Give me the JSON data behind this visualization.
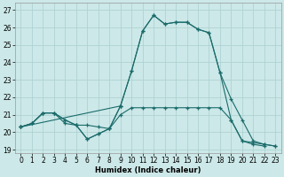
{
  "xlabel": "Humidex (Indice chaleur)",
  "xlim": [
    -0.5,
    23.5
  ],
  "ylim": [
    18.8,
    27.4
  ],
  "yticks": [
    19,
    20,
    21,
    22,
    23,
    24,
    25,
    26,
    27
  ],
  "xticks": [
    0,
    1,
    2,
    3,
    4,
    5,
    6,
    7,
    8,
    9,
    10,
    11,
    12,
    13,
    14,
    15,
    16,
    17,
    18,
    19,
    20,
    21,
    22,
    23
  ],
  "bg_color": "#cce8e8",
  "grid_color": "#aacfcf",
  "line_color": "#1a6b6b",
  "curves": [
    {
      "x": [
        0,
        1,
        2,
        3,
        4,
        5,
        6,
        7,
        8,
        9,
        10,
        11,
        12,
        13,
        14,
        15,
        16,
        17,
        18,
        19,
        20,
        21,
        22
      ],
      "y": [
        20.3,
        20.5,
        21.1,
        21.1,
        20.7,
        20.4,
        19.6,
        19.9,
        20.2,
        21.5,
        23.5,
        25.8,
        26.7,
        26.2,
        26.3,
        26.3,
        25.9,
        25.7,
        23.4,
        20.7,
        19.5,
        19.3,
        19.2
      ]
    },
    {
      "x": [
        0,
        1,
        2,
        3,
        4,
        5,
        6,
        7,
        8,
        9,
        10,
        11,
        12,
        13,
        14,
        15,
        16,
        17,
        18,
        19,
        20,
        21,
        22,
        23
      ],
      "y": [
        20.3,
        20.5,
        21.1,
        21.1,
        20.5,
        20.4,
        20.4,
        20.3,
        20.2,
        21.0,
        21.4,
        21.4,
        21.4,
        21.4,
        21.4,
        21.4,
        21.4,
        21.4,
        21.4,
        20.7,
        19.5,
        19.4,
        19.3,
        19.2
      ]
    },
    {
      "x": [
        0,
        1,
        2,
        3,
        4,
        5,
        6,
        7,
        8,
        9
      ],
      "y": [
        20.3,
        20.5,
        21.1,
        21.1,
        20.7,
        20.4,
        19.6,
        19.9,
        20.2,
        21.5
      ]
    },
    {
      "x": [
        0,
        9,
        10,
        11,
        12,
        13,
        14,
        15,
        16,
        17,
        18,
        19,
        20,
        21,
        22,
        23
      ],
      "y": [
        20.3,
        21.5,
        23.5,
        25.8,
        26.7,
        26.2,
        26.3,
        26.3,
        25.9,
        25.7,
        23.4,
        21.9,
        20.7,
        19.5,
        19.3,
        19.2
      ]
    }
  ]
}
